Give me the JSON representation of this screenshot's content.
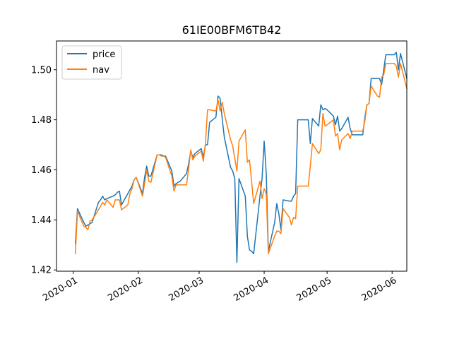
{
  "chart_data": {
    "type": "line",
    "title": "61IE00BFM6TB42",
    "xlabel": "",
    "ylabel": "",
    "x_ticks": [
      "2020-01",
      "2020-02",
      "2020-03",
      "2020-04",
      "2020-05",
      "2020-06"
    ],
    "y_ticks": [
      "1.42",
      "1.44",
      "1.46",
      "1.48",
      "1.50"
    ],
    "ylim": [
      1.4195,
      1.5115
    ],
    "xlim": [
      "2019-12-24",
      "2020-06-08"
    ],
    "grid": false,
    "legend_position": "top-left",
    "series": [
      {
        "name": "price",
        "color": "#1f77b4",
        "points": [
          [
            "2020-01-02",
            1.4305
          ],
          [
            "2020-01-03",
            1.4445
          ],
          [
            "2020-01-06",
            1.439
          ],
          [
            "2020-01-07",
            1.4375
          ],
          [
            "2020-01-08",
            1.438
          ],
          [
            "2020-01-09",
            1.4385
          ],
          [
            "2020-01-10",
            1.439
          ],
          [
            "2020-01-13",
            1.447
          ],
          [
            "2020-01-14",
            1.448
          ],
          [
            "2020-01-15",
            1.4495
          ],
          [
            "2020-01-16",
            1.448
          ],
          [
            "2020-01-17",
            1.4485
          ],
          [
            "2020-01-20",
            1.4495
          ],
          [
            "2020-01-21",
            1.45
          ],
          [
            "2020-01-22",
            1.451
          ],
          [
            "2020-01-23",
            1.4515
          ],
          [
            "2020-01-24",
            1.446
          ],
          [
            "2020-01-27",
            1.4505
          ],
          [
            "2020-01-28",
            1.452
          ],
          [
            "2020-01-29",
            1.4535
          ],
          [
            "2020-01-30",
            1.456
          ],
          [
            "2020-01-31",
            1.457
          ],
          [
            "2020-02-03",
            1.4505
          ],
          [
            "2020-02-04",
            1.457
          ],
          [
            "2020-02-05",
            1.4615
          ],
          [
            "2020-02-06",
            1.4575
          ],
          [
            "2020-02-07",
            1.4575
          ],
          [
            "2020-02-10",
            1.466
          ],
          [
            "2020-02-11",
            1.466
          ],
          [
            "2020-02-12",
            1.466
          ],
          [
            "2020-02-13",
            1.4655
          ],
          [
            "2020-02-14",
            1.4655
          ],
          [
            "2020-02-17",
            1.4595
          ],
          [
            "2020-02-18",
            1.4535
          ],
          [
            "2020-02-19",
            1.4545
          ],
          [
            "2020-02-20",
            1.455
          ],
          [
            "2020-02-21",
            1.4555
          ],
          [
            "2020-02-24",
            1.4585
          ],
          [
            "2020-02-25",
            1.4625
          ],
          [
            "2020-02-26",
            1.4675
          ],
          [
            "2020-02-27",
            1.465
          ],
          [
            "2020-02-28",
            1.4665
          ],
          [
            "2020-03-02",
            1.4685
          ],
          [
            "2020-03-03",
            1.465
          ],
          [
            "2020-03-04",
            1.47
          ],
          [
            "2020-03-05",
            1.47
          ],
          [
            "2020-03-06",
            1.479
          ],
          [
            "2020-03-09",
            1.481
          ],
          [
            "2020-03-10",
            1.4895
          ],
          [
            "2020-03-11",
            1.4885
          ],
          [
            "2020-03-12",
            1.4805
          ],
          [
            "2020-03-13",
            1.473
          ],
          [
            "2020-03-16",
            1.461
          ],
          [
            "2020-03-17",
            1.4595
          ],
          [
            "2020-03-18",
            1.4565
          ],
          [
            "2020-03-19",
            1.423
          ],
          [
            "2020-03-20",
            1.4565
          ],
          [
            "2020-03-23",
            1.4495
          ],
          [
            "2020-03-24",
            1.4335
          ],
          [
            "2020-03-25",
            1.428
          ],
          [
            "2020-03-26",
            1.4275
          ],
          [
            "2020-03-27",
            1.4265
          ],
          [
            "2020-03-30",
            1.4495
          ],
          [
            "2020-03-31",
            1.4565
          ],
          [
            "2020-04-01",
            1.4715
          ],
          [
            "2020-04-02",
            1.4585
          ],
          [
            "2020-04-03",
            1.4275
          ],
          [
            "2020-04-06",
            1.439
          ],
          [
            "2020-04-07",
            1.4465
          ],
          [
            "2020-04-08",
            1.4425
          ],
          [
            "2020-04-09",
            1.436
          ],
          [
            "2020-04-10",
            1.448
          ],
          [
            "2020-04-13",
            1.4475
          ],
          [
            "2020-04-14",
            1.4475
          ],
          [
            "2020-04-15",
            1.4495
          ],
          [
            "2020-04-16",
            1.4505
          ],
          [
            "2020-04-17",
            1.48
          ],
          [
            "2020-04-20",
            1.48
          ],
          [
            "2020-04-21",
            1.48
          ],
          [
            "2020-04-22",
            1.48
          ],
          [
            "2020-04-23",
            1.4705
          ],
          [
            "2020-04-24",
            1.4805
          ],
          [
            "2020-04-27",
            1.4775
          ],
          [
            "2020-04-28",
            1.486
          ],
          [
            "2020-04-29",
            1.484
          ],
          [
            "2020-04-30",
            1.4845
          ],
          [
            "2020-05-01",
            1.484
          ],
          [
            "2020-05-04",
            1.4815
          ],
          [
            "2020-05-05",
            1.478
          ],
          [
            "2020-05-06",
            1.4815
          ],
          [
            "2020-05-07",
            1.4755
          ],
          [
            "2020-05-08",
            1.4765
          ],
          [
            "2020-05-11",
            1.481
          ],
          [
            "2020-05-12",
            1.4765
          ],
          [
            "2020-05-13",
            1.474
          ],
          [
            "2020-05-14",
            1.474
          ],
          [
            "2020-05-15",
            1.474
          ],
          [
            "2020-05-18",
            1.474
          ],
          [
            "2020-05-19",
            1.481
          ],
          [
            "2020-05-20",
            1.486
          ],
          [
            "2020-05-21",
            1.4865
          ],
          [
            "2020-05-22",
            1.4965
          ],
          [
            "2020-05-25",
            1.4965
          ],
          [
            "2020-05-26",
            1.4965
          ],
          [
            "2020-05-27",
            1.494
          ],
          [
            "2020-05-28",
            1.5
          ],
          [
            "2020-05-29",
            1.506
          ],
          [
            "2020-06-01",
            1.506
          ],
          [
            "2020-06-02",
            1.506
          ],
          [
            "2020-06-03",
            1.507
          ],
          [
            "2020-06-04",
            1.5
          ],
          [
            "2020-06-05",
            1.5065
          ],
          [
            "2020-06-08",
            1.4965
          ]
        ]
      },
      {
        "name": "nav",
        "color": "#ff7f0e",
        "points": [
          [
            "2020-01-02",
            1.4265
          ],
          [
            "2020-01-03",
            1.4435
          ],
          [
            "2020-01-06",
            1.4375
          ],
          [
            "2020-01-07",
            1.437
          ],
          [
            "2020-01-08",
            1.436
          ],
          [
            "2020-01-09",
            1.4395
          ],
          [
            "2020-01-10",
            1.44
          ],
          [
            "2020-01-13",
            1.444
          ],
          [
            "2020-01-14",
            1.4455
          ],
          [
            "2020-01-15",
            1.447
          ],
          [
            "2020-01-16",
            1.446
          ],
          [
            "2020-01-17",
            1.448
          ],
          [
            "2020-01-20",
            1.445
          ],
          [
            "2020-01-21",
            1.448
          ],
          [
            "2020-01-22",
            1.448
          ],
          [
            "2020-01-23",
            1.448
          ],
          [
            "2020-01-24",
            1.444
          ],
          [
            "2020-01-27",
            1.446
          ],
          [
            "2020-01-28",
            1.4505
          ],
          [
            "2020-01-29",
            1.4525
          ],
          [
            "2020-01-30",
            1.456
          ],
          [
            "2020-01-31",
            1.457
          ],
          [
            "2020-02-03",
            1.4495
          ],
          [
            "2020-02-04",
            1.4545
          ],
          [
            "2020-02-05",
            1.46
          ],
          [
            "2020-02-06",
            1.4555
          ],
          [
            "2020-02-07",
            1.455
          ],
          [
            "2020-02-10",
            1.466
          ],
          [
            "2020-02-11",
            1.466
          ],
          [
            "2020-02-12",
            1.4655
          ],
          [
            "2020-02-13",
            1.4655
          ],
          [
            "2020-02-14",
            1.465
          ],
          [
            "2020-02-17",
            1.4575
          ],
          [
            "2020-02-18",
            1.4515
          ],
          [
            "2020-02-19",
            1.454
          ],
          [
            "2020-02-20",
            1.454
          ],
          [
            "2020-02-21",
            1.454
          ],
          [
            "2020-02-24",
            1.454
          ],
          [
            "2020-02-25",
            1.4605
          ],
          [
            "2020-02-26",
            1.468
          ],
          [
            "2020-02-27",
            1.464
          ],
          [
            "2020-02-28",
            1.4655
          ],
          [
            "2020-03-02",
            1.4675
          ],
          [
            "2020-03-03",
            1.4635
          ],
          [
            "2020-03-04",
            1.4705
          ],
          [
            "2020-03-05",
            1.484
          ],
          [
            "2020-03-06",
            1.484
          ],
          [
            "2020-03-09",
            1.4835
          ],
          [
            "2020-03-10",
            1.488
          ],
          [
            "2020-03-11",
            1.4835
          ],
          [
            "2020-03-12",
            1.487
          ],
          [
            "2020-03-13",
            1.4825
          ],
          [
            "2020-03-16",
            1.472
          ],
          [
            "2020-03-17",
            1.4695
          ],
          [
            "2020-03-18",
            1.4645
          ],
          [
            "2020-03-19",
            1.4595
          ],
          [
            "2020-03-20",
            1.4715
          ],
          [
            "2020-03-23",
            1.476
          ],
          [
            "2020-03-24",
            1.463
          ],
          [
            "2020-03-25",
            1.464
          ],
          [
            "2020-03-26",
            1.4555
          ],
          [
            "2020-03-27",
            1.4465
          ],
          [
            "2020-03-30",
            1.4555
          ],
          [
            "2020-03-31",
            1.4485
          ],
          [
            "2020-04-01",
            1.4525
          ],
          [
            "2020-04-02",
            1.4505
          ],
          [
            "2020-04-03",
            1.4265
          ],
          [
            "2020-04-06",
            1.4335
          ],
          [
            "2020-04-07",
            1.4355
          ],
          [
            "2020-04-08",
            1.4355
          ],
          [
            "2020-04-09",
            1.4345
          ],
          [
            "2020-04-10",
            1.4445
          ],
          [
            "2020-04-13",
            1.441
          ],
          [
            "2020-04-14",
            1.438
          ],
          [
            "2020-04-15",
            1.441
          ],
          [
            "2020-04-16",
            1.4405
          ],
          [
            "2020-04-17",
            1.4535
          ],
          [
            "2020-04-20",
            1.4535
          ],
          [
            "2020-04-21",
            1.4535
          ],
          [
            "2020-04-22",
            1.4535
          ],
          [
            "2020-04-23",
            1.4615
          ],
          [
            "2020-04-24",
            1.4705
          ],
          [
            "2020-04-27",
            1.4665
          ],
          [
            "2020-04-28",
            1.468
          ],
          [
            "2020-04-29",
            1.4825
          ],
          [
            "2020-04-30",
            1.4775
          ],
          [
            "2020-05-01",
            1.478
          ],
          [
            "2020-05-04",
            1.48
          ],
          [
            "2020-05-05",
            1.4735
          ],
          [
            "2020-05-06",
            1.4745
          ],
          [
            "2020-05-07",
            1.468
          ],
          [
            "2020-05-08",
            1.472
          ],
          [
            "2020-05-11",
            1.4745
          ],
          [
            "2020-05-12",
            1.4725
          ],
          [
            "2020-05-13",
            1.4755
          ],
          [
            "2020-05-14",
            1.4755
          ],
          [
            "2020-05-15",
            1.4755
          ],
          [
            "2020-05-18",
            1.4755
          ],
          [
            "2020-05-19",
            1.4795
          ],
          [
            "2020-05-20",
            1.486
          ],
          [
            "2020-05-21",
            1.4865
          ],
          [
            "2020-05-22",
            1.4935
          ],
          [
            "2020-05-25",
            1.4895
          ],
          [
            "2020-05-26",
            1.489
          ],
          [
            "2020-05-27",
            1.497
          ],
          [
            "2020-05-28",
            1.498
          ],
          [
            "2020-05-29",
            1.5025
          ],
          [
            "2020-06-01",
            1.5025
          ],
          [
            "2020-06-02",
            1.5025
          ],
          [
            "2020-06-03",
            1.5015
          ],
          [
            "2020-06-04",
            1.497
          ],
          [
            "2020-06-05",
            1.5025
          ],
          [
            "2020-06-08",
            1.4925
          ]
        ]
      }
    ]
  }
}
